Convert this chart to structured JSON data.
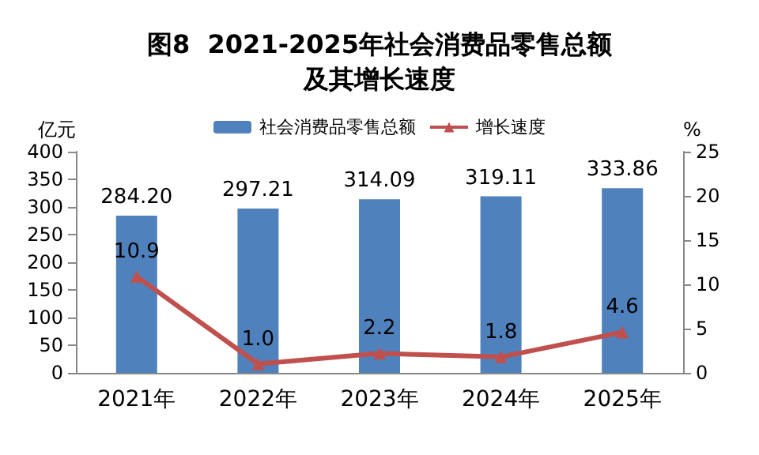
{
  "chart_data": {
    "type": "bar",
    "title": "图8  2021-2025年社会消费品零售总额及其增长速度",
    "categories": [
      "2021年",
      "2022年",
      "2023年",
      "2024年",
      "2025年"
    ],
    "series": [
      {
        "name": "社会消费品零售总额",
        "color": "#4f81bd",
        "values": [
          284.2,
          297.21,
          314.09,
          319.11,
          333.86
        ],
        "value_labels": [
          "284.20",
          "297.21",
          "314.09",
          "319.11",
          "333.86"
        ]
      },
      {
        "name": "增长速度",
        "type": "line",
        "axis": "y2",
        "color": "#c0504d",
        "marker": "triangle",
        "values": [
          10.9,
          1.0,
          2.2,
          1.8,
          4.6
        ],
        "value_labels": [
          "10.9",
          "1.0",
          "2.2",
          "1.8",
          "4.6"
        ]
      }
    ],
    "ylabel": "亿元",
    "y2label": "%",
    "ylim": [
      0,
      400
    ],
    "yticks": [
      0,
      50,
      100,
      150,
      200,
      250,
      300,
      350,
      400
    ],
    "y2lim": [
      0,
      25
    ],
    "y2ticks": [
      0,
      5,
      10,
      15,
      20,
      25
    ],
    "legend": "top",
    "grid": false
  }
}
